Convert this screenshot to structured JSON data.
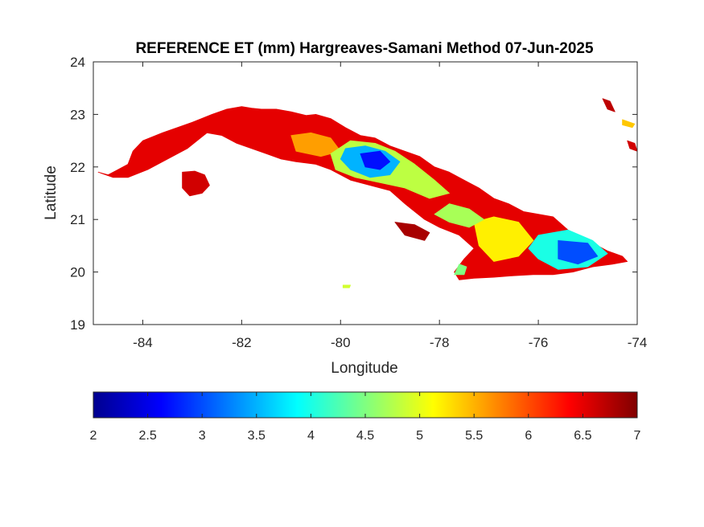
{
  "chart_data": {
    "type": "heatmap",
    "title": "REFERENCE ET (mm) Hargreaves-Samani Method  07-Jun-2025",
    "xlabel": "Longitude",
    "ylabel": "Latitude",
    "xlim": [
      -85,
      -74
    ],
    "ylim": [
      19,
      24
    ],
    "x_ticks": [
      -84,
      -82,
      -80,
      -78,
      -76,
      -74
    ],
    "y_ticks": [
      19,
      20,
      21,
      22,
      23,
      24
    ],
    "colormap": "jet",
    "colorbar": {
      "range": [
        2,
        7
      ],
      "ticks": [
        2,
        2.5,
        3,
        3.5,
        4,
        4.5,
        5,
        5.5,
        6,
        6.5,
        7
      ],
      "placement": "bottom"
    },
    "field_regions": [
      {
        "name": "",
        "et_mm": 6.5,
        "points": [
          [
            -84.9,
            21.9
          ],
          [
            -84.7,
            21.85
          ],
          [
            -84.5,
            21.95
          ],
          [
            -84.3,
            22.05
          ],
          [
            -84.2,
            22.3
          ],
          [
            -84.0,
            22.5
          ],
          [
            -83.6,
            22.65
          ],
          [
            -83.3,
            22.75
          ],
          [
            -83.0,
            22.85
          ],
          [
            -82.6,
            23.0
          ],
          [
            -82.3,
            23.1
          ],
          [
            -82.0,
            23.15
          ],
          [
            -81.8,
            23.12
          ],
          [
            -81.6,
            23.1
          ],
          [
            -81.3,
            23.1
          ],
          [
            -81.0,
            23.05
          ],
          [
            -80.7,
            22.98
          ],
          [
            -80.5,
            23.0
          ],
          [
            -80.2,
            22.92
          ],
          [
            -79.9,
            22.75
          ],
          [
            -79.6,
            22.6
          ],
          [
            -79.3,
            22.55
          ],
          [
            -79.0,
            22.4
          ],
          [
            -78.7,
            22.3
          ],
          [
            -78.4,
            22.2
          ],
          [
            -78.1,
            22.0
          ],
          [
            -77.8,
            21.9
          ],
          [
            -77.5,
            21.75
          ],
          [
            -77.2,
            21.6
          ],
          [
            -76.9,
            21.4
          ],
          [
            -76.6,
            21.3
          ],
          [
            -76.3,
            21.15
          ],
          [
            -76.0,
            21.1
          ],
          [
            -75.7,
            21.05
          ],
          [
            -75.4,
            20.8
          ],
          [
            -75.2,
            20.7
          ],
          [
            -74.9,
            20.55
          ],
          [
            -74.6,
            20.4
          ],
          [
            -74.3,
            20.3
          ],
          [
            -74.2,
            20.2
          ],
          [
            -74.5,
            20.15
          ],
          [
            -74.9,
            20.1
          ],
          [
            -75.3,
            20.0
          ],
          [
            -75.7,
            19.95
          ],
          [
            -76.1,
            19.95
          ],
          [
            -76.5,
            19.93
          ],
          [
            -76.9,
            19.9
          ],
          [
            -77.3,
            19.88
          ],
          [
            -77.6,
            19.85
          ],
          [
            -77.7,
            20.0
          ],
          [
            -77.5,
            20.25
          ],
          [
            -77.3,
            20.45
          ],
          [
            -77.6,
            20.7
          ],
          [
            -78.0,
            20.85
          ],
          [
            -78.3,
            21.0
          ],
          [
            -78.7,
            21.3
          ],
          [
            -79.0,
            21.55
          ],
          [
            -79.4,
            21.65
          ],
          [
            -79.8,
            21.75
          ],
          [
            -80.2,
            21.95
          ],
          [
            -80.5,
            22.05
          ],
          [
            -80.9,
            22.1
          ],
          [
            -81.2,
            22.15
          ],
          [
            -81.5,
            22.25
          ],
          [
            -81.8,
            22.35
          ],
          [
            -82.1,
            22.45
          ],
          [
            -82.4,
            22.6
          ],
          [
            -82.7,
            22.65
          ],
          [
            -83.1,
            22.35
          ],
          [
            -83.5,
            22.15
          ],
          [
            -83.9,
            21.95
          ],
          [
            -84.3,
            21.8
          ],
          [
            -84.6,
            21.8
          ]
        ]
      },
      {
        "name": "",
        "et_mm": 6.6,
        "points": [
          [
            -83.2,
            21.9
          ],
          [
            -82.95,
            21.92
          ],
          [
            -82.75,
            21.85
          ],
          [
            -82.65,
            21.65
          ],
          [
            -82.8,
            21.5
          ],
          [
            -83.05,
            21.45
          ],
          [
            -83.2,
            21.6
          ]
        ]
      },
      {
        "name": "",
        "et_mm": 5.6,
        "points": [
          [
            -81.0,
            22.6
          ],
          [
            -80.6,
            22.65
          ],
          [
            -80.2,
            22.55
          ],
          [
            -80.0,
            22.3
          ],
          [
            -80.4,
            22.2
          ],
          [
            -80.9,
            22.3
          ]
        ]
      },
      {
        "name": "",
        "et_mm": 4.8,
        "points": [
          [
            -80.2,
            22.25
          ],
          [
            -79.8,
            22.5
          ],
          [
            -79.3,
            22.45
          ],
          [
            -78.9,
            22.3
          ],
          [
            -78.5,
            22.05
          ],
          [
            -78.1,
            21.75
          ],
          [
            -77.8,
            21.5
          ],
          [
            -78.2,
            21.4
          ],
          [
            -78.7,
            21.6
          ],
          [
            -79.2,
            21.7
          ],
          [
            -79.7,
            21.8
          ],
          [
            -80.1,
            21.95
          ]
        ]
      },
      {
        "name": "",
        "et_mm": 3.5,
        "points": [
          [
            -79.9,
            22.35
          ],
          [
            -79.5,
            22.4
          ],
          [
            -79.1,
            22.3
          ],
          [
            -78.8,
            22.1
          ],
          [
            -79.0,
            21.85
          ],
          [
            -79.4,
            21.8
          ],
          [
            -79.8,
            21.95
          ],
          [
            -80.0,
            22.15
          ]
        ]
      },
      {
        "name": "",
        "et_mm": 2.7,
        "points": [
          [
            -79.6,
            22.25
          ],
          [
            -79.2,
            22.3
          ],
          [
            -79.0,
            22.1
          ],
          [
            -79.2,
            21.95
          ],
          [
            -79.5,
            22.0
          ]
        ]
      },
      {
        "name": "",
        "et_mm": 5.2,
        "points": [
          [
            -77.3,
            20.95
          ],
          [
            -76.9,
            21.05
          ],
          [
            -76.4,
            20.95
          ],
          [
            -76.1,
            20.6
          ],
          [
            -76.4,
            20.3
          ],
          [
            -76.9,
            20.2
          ],
          [
            -77.2,
            20.5
          ]
        ]
      },
      {
        "name": "",
        "et_mm": 4.7,
        "points": [
          [
            -77.8,
            21.3
          ],
          [
            -77.4,
            21.2
          ],
          [
            -77.1,
            21.0
          ],
          [
            -77.4,
            20.85
          ],
          [
            -77.8,
            20.95
          ],
          [
            -78.1,
            21.1
          ]
        ]
      },
      {
        "name": "",
        "et_mm": 4.0,
        "points": [
          [
            -76.0,
            20.7
          ],
          [
            -75.4,
            20.8
          ],
          [
            -74.9,
            20.6
          ],
          [
            -74.6,
            20.35
          ],
          [
            -75.0,
            20.1
          ],
          [
            -75.6,
            20.05
          ],
          [
            -76.0,
            20.25
          ],
          [
            -76.2,
            20.45
          ]
        ]
      },
      {
        "name": "",
        "et_mm": 3.0,
        "points": [
          [
            -75.6,
            20.6
          ],
          [
            -75.0,
            20.55
          ],
          [
            -74.8,
            20.3
          ],
          [
            -75.2,
            20.15
          ],
          [
            -75.6,
            20.25
          ]
        ]
      },
      {
        "name": "",
        "et_mm": 4.5,
        "points": [
          [
            -77.7,
            19.95
          ],
          [
            -77.5,
            19.95
          ],
          [
            -77.45,
            20.1
          ],
          [
            -77.6,
            20.15
          ]
        ]
      },
      {
        "name": "",
        "et_mm": 6.8,
        "points": [
          [
            -78.9,
            20.95
          ],
          [
            -78.7,
            20.7
          ],
          [
            -78.3,
            20.6
          ],
          [
            -78.2,
            20.75
          ],
          [
            -78.5,
            20.9
          ]
        ]
      },
      {
        "name": "",
        "et_mm": 6.7,
        "points": [
          [
            -74.7,
            23.3
          ],
          [
            -74.55,
            23.25
          ],
          [
            -74.45,
            23.05
          ],
          [
            -74.6,
            23.1
          ]
        ]
      },
      {
        "name": "",
        "et_mm": 6.6,
        "points": [
          [
            -74.2,
            22.5
          ],
          [
            -74.05,
            22.45
          ],
          [
            -74.0,
            22.3
          ],
          [
            -74.15,
            22.35
          ]
        ]
      },
      {
        "name": "",
        "et_mm": 5.4,
        "points": [
          [
            -74.3,
            22.9
          ],
          [
            -74.05,
            22.82
          ],
          [
            -74.1,
            22.75
          ],
          [
            -74.3,
            22.8
          ]
        ]
      },
      {
        "name": "",
        "et_mm": 4.9,
        "points": [
          [
            -79.95,
            19.75
          ],
          [
            -79.8,
            19.75
          ],
          [
            -79.82,
            19.7
          ],
          [
            -79.95,
            19.7
          ]
        ]
      }
    ]
  }
}
